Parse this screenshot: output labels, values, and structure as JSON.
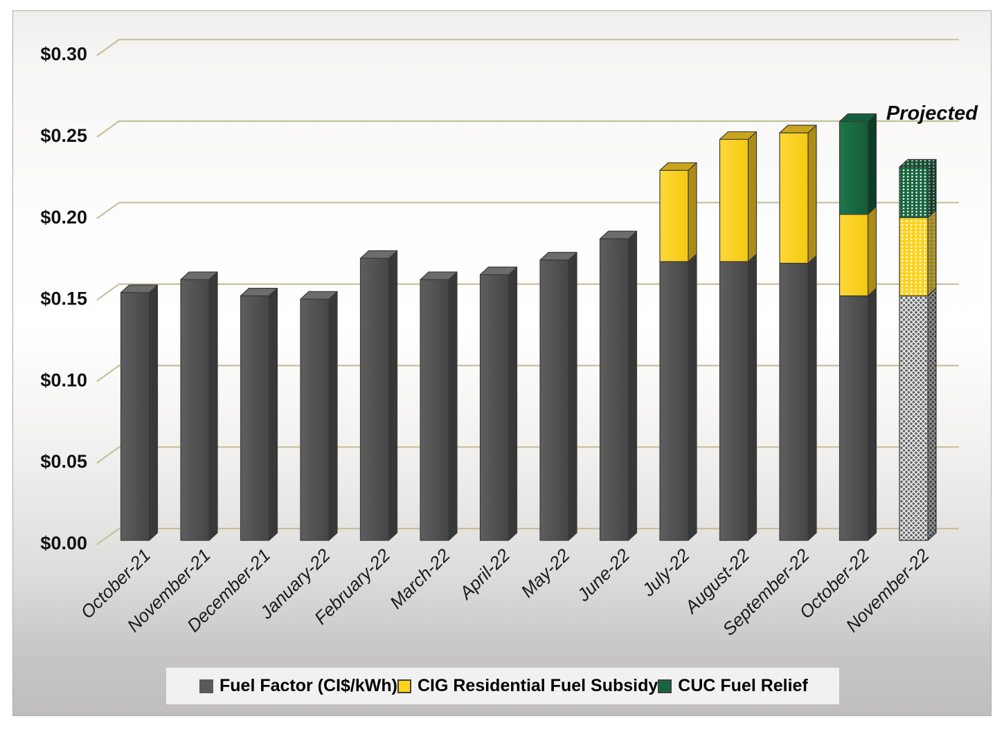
{
  "annotation": "Projected",
  "chart_data": {
    "type": "bar",
    "stacked": true,
    "style_3d": true,
    "title": "",
    "xlabel": "",
    "ylabel": "",
    "ylim": [
      0,
      0.3
    ],
    "y_tick_step": 0.05,
    "y_ticks": [
      "$0.30",
      "$0.25",
      "$0.20",
      "$0.15",
      "$0.10",
      "$0.05",
      "$0.00"
    ],
    "grid": true,
    "gridline_color": "#c7c09c",
    "legend_position": "bottom",
    "legend_bg": "#f1f1f1",
    "categories": [
      "October-21",
      "November-21",
      "December-21",
      "January-22",
      "February-22",
      "March-22",
      "April-22",
      "May-22",
      "June-22",
      "July-22",
      "August-22",
      "September-22",
      "October-22",
      "November-22"
    ],
    "series": [
      {
        "name": "Fuel Factor (CI$/kWh)",
        "color": "#4f4f4f",
        "values": [
          0.152,
          0.16,
          0.15,
          0.148,
          0.173,
          0.16,
          0.163,
          0.172,
          0.185,
          0.171,
          0.171,
          0.17,
          0.15,
          0.15
        ]
      },
      {
        "name": "CIG Residential Fuel Subsidy",
        "color": "#fcd21d",
        "values": [
          0,
          0,
          0,
          0,
          0,
          0,
          0,
          0,
          0,
          0.056,
          0.075,
          0.08,
          0.05,
          0.048
        ]
      },
      {
        "name": "CUC Fuel Relief",
        "color": "#17653f",
        "values": [
          0,
          0,
          0,
          0,
          0,
          0,
          0,
          0,
          0,
          0,
          0,
          0,
          0.057,
          0.031
        ]
      }
    ],
    "projected_categories": [
      "November-22"
    ],
    "annotation": "Projected"
  }
}
